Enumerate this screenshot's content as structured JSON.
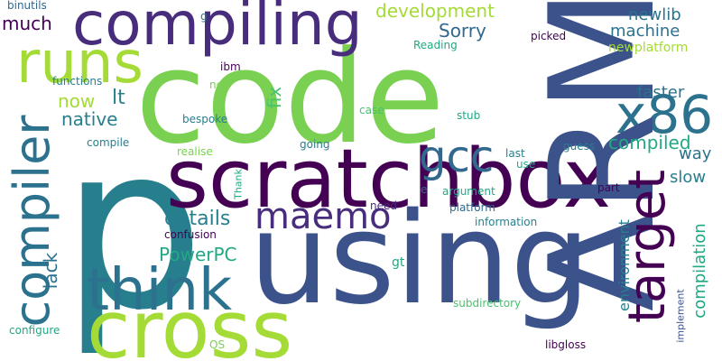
{
  "colors": {
    "background": "#ffffff",
    "yellow_green": "#a5db36",
    "light_green": "#7ad151",
    "green": "#4ac16d",
    "teal_green": "#22a884",
    "teal": "#1f9e89",
    "dark_teal": "#277f8e",
    "blue": "#2c728e",
    "slate_blue": "#31688e",
    "indigo": "#3b528b",
    "violet": "#414487",
    "dark_violet": "#472d7b",
    "purple": "#440154"
  },
  "words": [
    "p",
    "code",
    "using",
    "ARM",
    "compiling",
    "cross",
    "scratchbox",
    "think",
    "compiler",
    "runs",
    "x86",
    "target",
    "gcc",
    "maemo",
    "details",
    "PowerPC",
    "native",
    "development",
    "Sorry",
    "compiled",
    "compilation",
    "environment",
    "lack",
    "now",
    "lt",
    "fix",
    "much",
    "newlib",
    "machine",
    "newplatform",
    "faster",
    "way",
    "slow",
    "binutils",
    "functions",
    "compile",
    "configure",
    "confusion",
    "realise",
    "Thank",
    "going",
    "bespoke",
    "ibm",
    "net",
    "Reading",
    "g",
    "e",
    "need",
    "platform",
    "argument",
    "information",
    "stub",
    "case",
    "last",
    "use",
    "guess",
    "part",
    "picked",
    "gt",
    "subdirectory",
    "OS",
    "libgloss",
    "implement"
  ]
}
